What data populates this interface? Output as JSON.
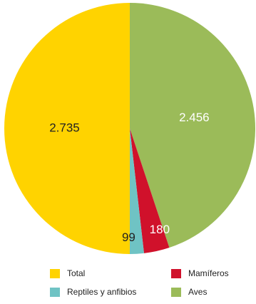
{
  "chart_data": {
    "type": "pie",
    "slices": [
      {
        "name": "Aves",
        "value": 2456,
        "label": "2.456",
        "color": "#9bbb59",
        "label_color": "#ffffff"
      },
      {
        "name": "Mamíferos",
        "value": 180,
        "label": "180",
        "color": "#d0112b",
        "label_color": "#ffffff"
      },
      {
        "name": "Reptiles y anfibios",
        "value": 99,
        "label": "99",
        "color": "#6fc3c4",
        "label_color": "#222222"
      },
      {
        "name": "Total",
        "value": 2735,
        "label": "2.735",
        "color": "#ffd300",
        "label_color": "#222222"
      }
    ],
    "start_angle_deg": 0,
    "direction": "clockwise",
    "legend": {
      "placement": "bottom",
      "items": [
        {
          "name": "Total",
          "color": "#ffd300"
        },
        {
          "name": "Mamíferos",
          "color": "#d0112b"
        },
        {
          "name": "Reptiles y anfibios",
          "color": "#6fc3c4"
        },
        {
          "name": "Aves",
          "color": "#9bbb59"
        }
      ]
    }
  }
}
